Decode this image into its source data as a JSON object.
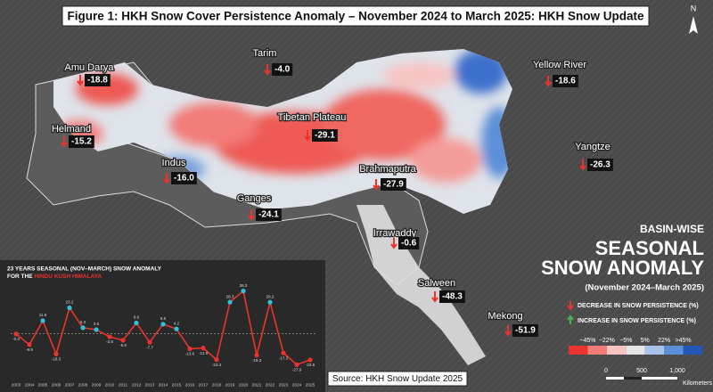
{
  "header": {
    "title": "Figure 1: HKH Snow Cover Persistence Anomaly – November 2024 to March 2025: HKH Snow Update",
    "north": "N"
  },
  "basins": [
    {
      "name": "Amu Darya",
      "anomaly": "-18.8"
    },
    {
      "name": "Tarim",
      "anomaly": "-4.0"
    },
    {
      "name": "Yellow River",
      "anomaly": "-18.6"
    },
    {
      "name": "Helmand",
      "anomaly": "-15.2"
    },
    {
      "name": "Tibetan Plateau",
      "anomaly": "-29.1"
    },
    {
      "name": "Yangtze",
      "anomaly": "-26.3"
    },
    {
      "name": "Indus",
      "anomaly": "-16.0"
    },
    {
      "name": "Brahmaputra",
      "anomaly": "-27.9"
    },
    {
      "name": "Ganges",
      "anomaly": "-24.1"
    },
    {
      "name": "Irrawaddy",
      "anomaly": "-0.6"
    },
    {
      "name": "Salween",
      "anomaly": "-48.3"
    },
    {
      "name": "Mekong",
      "anomaly": "-51.9"
    }
  ],
  "panel": {
    "line1": "BASIN-WISE",
    "line2": "SEASONAL",
    "line3": "SNOW ANOMALY",
    "period": "(November 2024–March 2025)",
    "decrease": "DECREASE IN SNOW PERSISTENCE (%)",
    "increase": "INCREASE IN SNOW PERSISTENCE (%)",
    "scale_labels": [
      "−45%",
      "−22%",
      "−5%",
      "5%",
      "22%",
      ">45%"
    ],
    "scale_colors": [
      "#e8332f",
      "#f27c78",
      "#f7c4c2",
      "#e6e6e6",
      "#a9c4ea",
      "#5b8fd8",
      "#2456b8"
    ],
    "distance_ticks": [
      "0",
      "500",
      "1,000"
    ],
    "distance_unit": "Kilometers"
  },
  "source": "Source: HKH Snow Update 2025",
  "inset_chart": {
    "type": "line",
    "title_line1": "23 YEARS SEASONAL (NOV–MARCH) SNOW ANOMALY",
    "title_prefix": "FOR THE",
    "title_highlight": "HINDU KUSH HIMALAYA",
    "categories": [
      "2003",
      "2004",
      "2005",
      "2006",
      "2007",
      "2008",
      "2009",
      "2010",
      "2011",
      "2012",
      "2013",
      "2014",
      "2015",
      "2016",
      "2017",
      "2018",
      "2019",
      "2020",
      "2021",
      "2022",
      "2023",
      "2024",
      "2025"
    ],
    "values": [
      -0.3,
      -9.9,
      11.6,
      -18.3,
      23.2,
      5.3,
      3.6,
      -2.8,
      -5.9,
      9.6,
      -7.7,
      8.5,
      4.2,
      -13.6,
      -12.9,
      -23.4,
      28.3,
      38.3,
      -19.3,
      28.2,
      -17.3,
      -27.9,
      -23.6
    ],
    "ylim": [
      -30,
      42
    ],
    "line_color": "#e8332f",
    "positive_color": "#2ec4d6",
    "negative_color": "#e8332f"
  }
}
